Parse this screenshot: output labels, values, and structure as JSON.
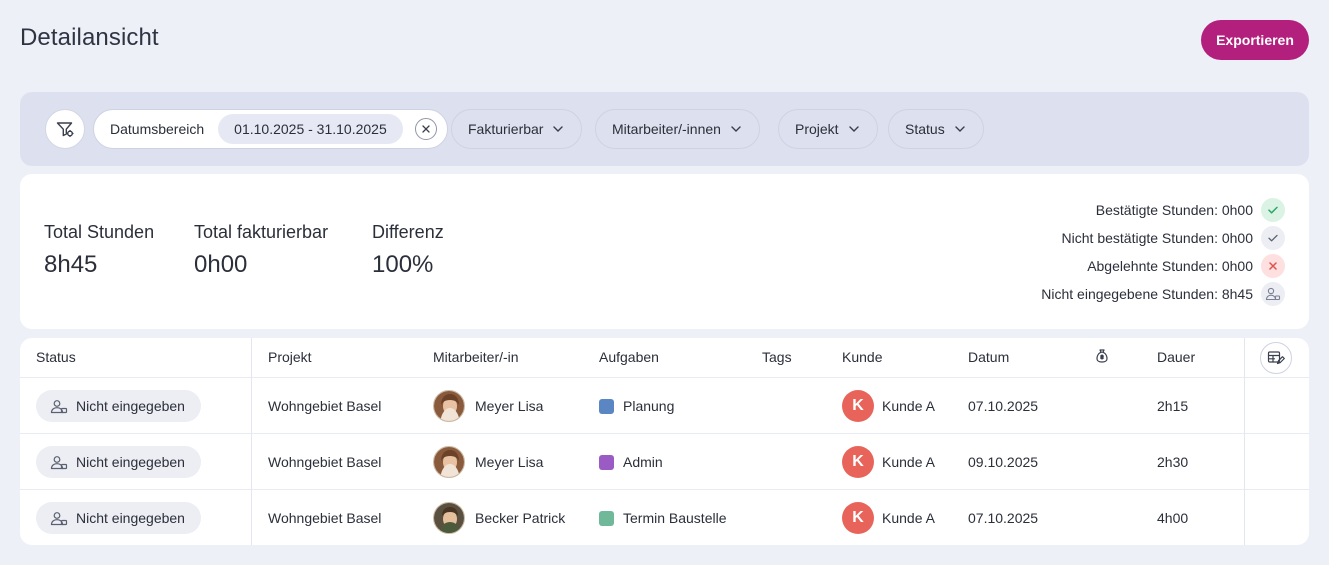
{
  "header": {
    "title": "Detailansicht",
    "export_label": "Exportieren"
  },
  "filters": {
    "filter_icon": "filter-settings-icon",
    "date_range_label": "Datumsbereich",
    "date_range_value": "01.10.2025 - 31.10.2025",
    "chips": [
      "Fakturierbar",
      "Mitarbeiter/-innen",
      "Projekt",
      "Status"
    ]
  },
  "summary": {
    "stats": [
      {
        "label": "Total Stunden",
        "value": "8h45"
      },
      {
        "label": "Total fakturierbar",
        "value": "0h00"
      },
      {
        "label": "Differenz",
        "value": "100%"
      }
    ],
    "legend": [
      {
        "label": "Bestätigte Stunden: 0h00",
        "icon": "check-icon",
        "color": "#2fa86a",
        "bg": "#daf3e4"
      },
      {
        "label": "Nicht bestätigte Stunden: 0h00",
        "icon": "check-icon",
        "color": "#5a6070",
        "bg": "#eceef4"
      },
      {
        "label": "Abgelehnte Stunden: 0h00",
        "icon": "close-icon",
        "color": "#e0524c",
        "bg": "#fde0df"
      },
      {
        "label": "Nicht eingegebene Stunden: 8h45",
        "icon": "user-missing-icon",
        "color": "#7a8091",
        "bg": "#eceef4"
      }
    ]
  },
  "table": {
    "headers": {
      "status": "Status",
      "projekt": "Projekt",
      "mitarbeiter": "Mitarbeiter/-in",
      "aufgaben": "Aufgaben",
      "tags": "Tags",
      "kunde": "Kunde",
      "datum": "Datum",
      "billing_icon": "money-bag-icon",
      "dauer": "Dauer"
    },
    "rows": [
      {
        "status": "Nicht eingegeben",
        "projekt": "Wohngebiet Basel",
        "mitarbeiter": "Meyer Lisa",
        "aufgabe": "Planung",
        "aufgabe_color": "#5b86c4",
        "tags": "",
        "kunde_initial": "K",
        "kunde": "Kunde A",
        "datum": "07.10.2025",
        "dauer": "2h15"
      },
      {
        "status": "Nicht eingegeben",
        "projekt": "Wohngebiet Basel",
        "mitarbeiter": "Meyer Lisa",
        "aufgabe": "Admin",
        "aufgabe_color": "#9a5bc4",
        "tags": "",
        "kunde_initial": "K",
        "kunde": "Kunde A",
        "datum": "09.10.2025",
        "dauer": "2h30"
      },
      {
        "status": "Nicht eingegeben",
        "projekt": "Wohngebiet Basel",
        "mitarbeiter": "Becker Patrick",
        "aufgabe": "Termin Baustelle",
        "aufgabe_color": "#6fb89a",
        "tags": "",
        "kunde_initial": "K",
        "kunde": "Kunde A",
        "datum": "07.10.2025",
        "dauer": "4h00"
      }
    ]
  }
}
